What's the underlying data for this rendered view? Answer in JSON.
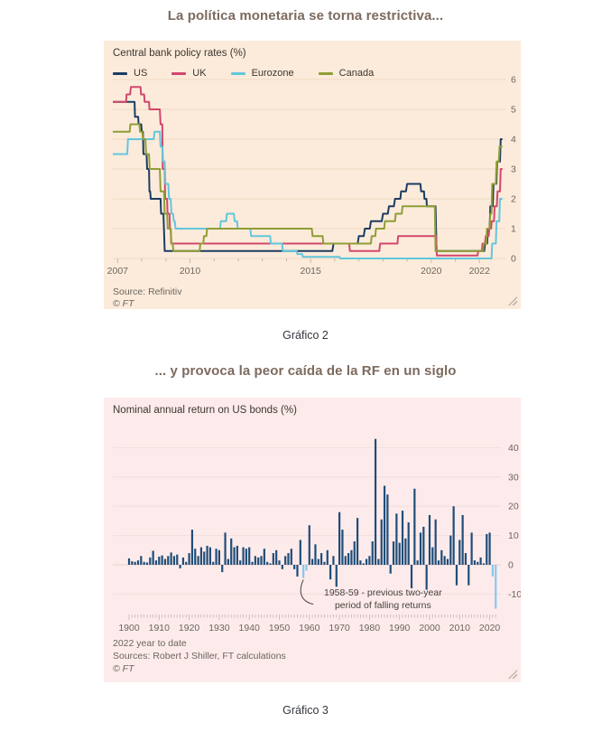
{
  "page": {
    "title1": "La política monetaria se torna restrictiva...",
    "caption1": "Gráfico 2",
    "title2": "... y provoca la peor caída de la RF en un siglo",
    "caption2": "Gráfico 3"
  },
  "colors": {
    "card1_bg": "#fcebdb",
    "card1_grid": "#efd9c2",
    "card1_tick": "#c9b7a4",
    "card2_bg": "#fdebeb",
    "card2_grid": "#f2dcdc",
    "card2_tick": "#c6b0b0",
    "axis_text": "#6b655e",
    "annotation_line": "#46423c"
  },
  "chart_data": [
    {
      "type": "line",
      "title": "Central bank policy rates (%)",
      "source": "Source: Refinitiv",
      "copyright": "© FT",
      "legend_position": "top",
      "grid": true,
      "x_domain": [
        2006.8,
        2023.0
      ],
      "y_domain": [
        0,
        6.3
      ],
      "x_ticks": [
        2007,
        2010,
        2015,
        2020,
        2022
      ],
      "y_ticks": [
        0,
        1,
        2,
        3,
        4,
        5,
        6
      ],
      "series": [
        {
          "name": "US",
          "color": "#1b3c61",
          "points": [
            [
              2006.8,
              5.25
            ],
            [
              2007.7,
              5.25
            ],
            [
              2007.72,
              4.75
            ],
            [
              2007.85,
              4.75
            ],
            [
              2007.87,
              4.5
            ],
            [
              2007.98,
              4.5
            ],
            [
              2008.0,
              4.25
            ],
            [
              2008.05,
              4.25
            ],
            [
              2008.07,
              3.5
            ],
            [
              2008.2,
              3.5
            ],
            [
              2008.22,
              3.0
            ],
            [
              2008.3,
              3.0
            ],
            [
              2008.32,
              2.25
            ],
            [
              2008.35,
              2.25
            ],
            [
              2008.37,
              2.0
            ],
            [
              2008.78,
              2.0
            ],
            [
              2008.8,
              1.5
            ],
            [
              2008.9,
              1.5
            ],
            [
              2008.95,
              0.25
            ],
            [
              2015.9,
              0.25
            ],
            [
              2015.95,
              0.5
            ],
            [
              2016.95,
              0.5
            ],
            [
              2017.0,
              0.75
            ],
            [
              2017.2,
              0.75
            ],
            [
              2017.25,
              1.0
            ],
            [
              2017.45,
              1.0
            ],
            [
              2017.5,
              1.25
            ],
            [
              2017.95,
              1.25
            ],
            [
              2018.0,
              1.5
            ],
            [
              2018.2,
              1.5
            ],
            [
              2018.25,
              1.75
            ],
            [
              2018.45,
              1.75
            ],
            [
              2018.5,
              2.0
            ],
            [
              2018.72,
              2.0
            ],
            [
              2018.75,
              2.25
            ],
            [
              2018.95,
              2.25
            ],
            [
              2019.0,
              2.5
            ],
            [
              2019.55,
              2.5
            ],
            [
              2019.58,
              2.25
            ],
            [
              2019.7,
              2.25
            ],
            [
              2019.72,
              2.0
            ],
            [
              2019.8,
              2.0
            ],
            [
              2019.82,
              1.75
            ],
            [
              2020.18,
              1.75
            ],
            [
              2020.22,
              0.25
            ],
            [
              2022.2,
              0.25
            ],
            [
              2022.23,
              0.5
            ],
            [
              2022.32,
              0.5
            ],
            [
              2022.35,
              1.0
            ],
            [
              2022.42,
              1.0
            ],
            [
              2022.45,
              1.75
            ],
            [
              2022.55,
              1.75
            ],
            [
              2022.58,
              2.5
            ],
            [
              2022.7,
              2.5
            ],
            [
              2022.73,
              3.25
            ],
            [
              2022.85,
              3.25
            ],
            [
              2022.88,
              4.0
            ],
            [
              2022.95,
              4.0
            ]
          ]
        },
        {
          "name": "UK",
          "color": "#d2476d",
          "points": [
            [
              2006.8,
              5.25
            ],
            [
              2007.35,
              5.25
            ],
            [
              2007.37,
              5.5
            ],
            [
              2007.52,
              5.5
            ],
            [
              2007.55,
              5.75
            ],
            [
              2007.95,
              5.75
            ],
            [
              2007.97,
              5.5
            ],
            [
              2008.1,
              5.5
            ],
            [
              2008.12,
              5.25
            ],
            [
              2008.3,
              5.25
            ],
            [
              2008.32,
              5.0
            ],
            [
              2008.75,
              5.0
            ],
            [
              2008.78,
              4.5
            ],
            [
              2008.85,
              4.5
            ],
            [
              2008.87,
              3.0
            ],
            [
              2008.95,
              3.0
            ],
            [
              2008.97,
              2.0
            ],
            [
              2009.05,
              2.0
            ],
            [
              2009.07,
              1.5
            ],
            [
              2009.15,
              1.5
            ],
            [
              2009.17,
              1.0
            ],
            [
              2009.2,
              1.0
            ],
            [
              2009.22,
              0.5
            ],
            [
              2016.6,
              0.5
            ],
            [
              2016.63,
              0.25
            ],
            [
              2017.85,
              0.25
            ],
            [
              2017.88,
              0.5
            ],
            [
              2018.6,
              0.5
            ],
            [
              2018.63,
              0.75
            ],
            [
              2020.2,
              0.75
            ],
            [
              2020.23,
              0.1
            ],
            [
              2021.92,
              0.1
            ],
            [
              2021.95,
              0.25
            ],
            [
              2022.1,
              0.25
            ],
            [
              2022.13,
              0.5
            ],
            [
              2022.23,
              0.5
            ],
            [
              2022.26,
              0.75
            ],
            [
              2022.38,
              0.75
            ],
            [
              2022.41,
              1.0
            ],
            [
              2022.48,
              1.0
            ],
            [
              2022.51,
              1.25
            ],
            [
              2022.6,
              1.25
            ],
            [
              2022.63,
              1.75
            ],
            [
              2022.72,
              1.75
            ],
            [
              2022.75,
              2.25
            ],
            [
              2022.85,
              2.25
            ],
            [
              2022.88,
              3.0
            ],
            [
              2022.95,
              3.0
            ]
          ]
        },
        {
          "name": "Eurozone",
          "color": "#62c6dc",
          "points": [
            [
              2006.8,
              3.5
            ],
            [
              2007.4,
              3.5
            ],
            [
              2007.43,
              4.0
            ],
            [
              2008.5,
              4.0
            ],
            [
              2008.53,
              4.25
            ],
            [
              2008.75,
              4.25
            ],
            [
              2008.78,
              3.75
            ],
            [
              2008.85,
              3.75
            ],
            [
              2008.88,
              3.25
            ],
            [
              2008.95,
              3.25
            ],
            [
              2008.98,
              2.5
            ],
            [
              2009.1,
              2.5
            ],
            [
              2009.13,
              2.0
            ],
            [
              2009.2,
              2.0
            ],
            [
              2009.23,
              1.5
            ],
            [
              2009.3,
              1.5
            ],
            [
              2009.33,
              1.25
            ],
            [
              2009.37,
              1.25
            ],
            [
              2009.4,
              1.0
            ],
            [
              2011.25,
              1.0
            ],
            [
              2011.28,
              1.25
            ],
            [
              2011.5,
              1.25
            ],
            [
              2011.53,
              1.5
            ],
            [
              2011.82,
              1.5
            ],
            [
              2011.85,
              1.25
            ],
            [
              2011.95,
              1.25
            ],
            [
              2011.98,
              1.0
            ],
            [
              2012.5,
              1.0
            ],
            [
              2012.53,
              0.75
            ],
            [
              2013.32,
              0.75
            ],
            [
              2013.35,
              0.5
            ],
            [
              2013.82,
              0.5
            ],
            [
              2013.85,
              0.25
            ],
            [
              2014.42,
              0.25
            ],
            [
              2014.45,
              0.15
            ],
            [
              2014.65,
              0.15
            ],
            [
              2014.68,
              0.05
            ],
            [
              2016.2,
              0.05
            ],
            [
              2016.23,
              0.0
            ],
            [
              2022.5,
              0.0
            ],
            [
              2022.53,
              0.5
            ],
            [
              2022.68,
              0.5
            ],
            [
              2022.71,
              1.25
            ],
            [
              2022.82,
              1.25
            ],
            [
              2022.85,
              2.0
            ],
            [
              2022.95,
              2.0
            ]
          ]
        },
        {
          "name": "Canada",
          "color": "#8f9e35",
          "points": [
            [
              2006.8,
              4.25
            ],
            [
              2007.5,
              4.25
            ],
            [
              2007.53,
              4.5
            ],
            [
              2007.9,
              4.5
            ],
            [
              2007.93,
              4.25
            ],
            [
              2008.02,
              4.25
            ],
            [
              2008.05,
              4.0
            ],
            [
              2008.15,
              4.0
            ],
            [
              2008.18,
              3.5
            ],
            [
              2008.3,
              3.5
            ],
            [
              2008.33,
              3.0
            ],
            [
              2008.75,
              3.0
            ],
            [
              2008.78,
              2.25
            ],
            [
              2008.92,
              2.25
            ],
            [
              2008.95,
              1.5
            ],
            [
              2009.05,
              1.5
            ],
            [
              2009.08,
              1.0
            ],
            [
              2009.2,
              1.0
            ],
            [
              2009.23,
              0.5
            ],
            [
              2009.28,
              0.5
            ],
            [
              2009.31,
              0.25
            ],
            [
              2010.4,
              0.25
            ],
            [
              2010.43,
              0.5
            ],
            [
              2010.55,
              0.5
            ],
            [
              2010.58,
              0.75
            ],
            [
              2010.68,
              0.75
            ],
            [
              2010.71,
              1.0
            ],
            [
              2015.05,
              1.0
            ],
            [
              2015.08,
              0.75
            ],
            [
              2015.5,
              0.75
            ],
            [
              2015.53,
              0.5
            ],
            [
              2017.5,
              0.5
            ],
            [
              2017.53,
              0.75
            ],
            [
              2017.68,
              0.75
            ],
            [
              2017.71,
              1.0
            ],
            [
              2018.05,
              1.0
            ],
            [
              2018.08,
              1.25
            ],
            [
              2018.5,
              1.25
            ],
            [
              2018.53,
              1.5
            ],
            [
              2018.78,
              1.5
            ],
            [
              2018.81,
              1.75
            ],
            [
              2020.15,
              1.75
            ],
            [
              2020.18,
              0.25
            ],
            [
              2022.15,
              0.25
            ],
            [
              2022.18,
              0.5
            ],
            [
              2022.28,
              0.5
            ],
            [
              2022.31,
              1.0
            ],
            [
              2022.42,
              1.0
            ],
            [
              2022.45,
              1.5
            ],
            [
              2022.5,
              1.5
            ],
            [
              2022.53,
              2.5
            ],
            [
              2022.68,
              2.5
            ],
            [
              2022.71,
              3.25
            ],
            [
              2022.8,
              3.25
            ],
            [
              2022.83,
              3.75
            ],
            [
              2022.95,
              3.75
            ]
          ]
        }
      ]
    },
    {
      "type": "bar",
      "title": "Nominal annual return on US bonds (%)",
      "footnote": "2022 year to date",
      "source": "Sources: Robert J Shiller, FT calculations",
      "copyright": "© FT",
      "start_year": 1900,
      "end_year": 2022,
      "x_ticks": [
        1900,
        1910,
        1920,
        1930,
        1940,
        1950,
        1960,
        1970,
        1980,
        1990,
        2000,
        2010,
        2020
      ],
      "y_ticks": [
        -10,
        0,
        10,
        20,
        30,
        40
      ],
      "y_domain": [
        -16,
        45
      ],
      "bar_color": "#1f4d78",
      "highlight_color": "#88c8ea",
      "highlight_years": [
        1958,
        1959,
        2021,
        2022
      ],
      "annotation": {
        "line1": "1958-59 - previous two-year",
        "line2": "period of falling returns",
        "target_year": 1958
      },
      "values": [
        2.2,
        1.2,
        1.0,
        1.5,
        3.0,
        1.0,
        0.8,
        2.5,
        4.8,
        1.5,
        2.8,
        3.2,
        2.0,
        3.0,
        4.2,
        3.0,
        3.5,
        -1.2,
        2.5,
        1.0,
        4.0,
        12.0,
        5.5,
        3.0,
        6.0,
        4.5,
        6.5,
        6.0,
        1.0,
        5.5,
        5.0,
        -2.5,
        11.0,
        2.0,
        9.0,
        6.0,
        6.5,
        1.5,
        6.0,
        5.5,
        6.0,
        1.0,
        3.0,
        2.5,
        3.0,
        5.5,
        1.0,
        0.5,
        4.0,
        5.0,
        1.5,
        -1.5,
        3.0,
        4.0,
        5.5,
        -1.5,
        -4.0,
        8.5,
        -4.5,
        -2.0,
        13.5,
        2.0,
        7.0,
        2.0,
        4.0,
        1.0,
        5.0,
        -5.0,
        3.0,
        -7.5,
        18.0,
        12.0,
        3.0,
        4.0,
        5.0,
        8.0,
        16.0,
        1.5,
        0.5,
        2.0,
        3.0,
        8.0,
        43.0,
        2.0,
        15.5,
        27.0,
        24.0,
        -3.0,
        8.0,
        17.5,
        7.5,
        18.5,
        9.0,
        14.5,
        -8.0,
        26.0,
        1.5,
        11.0,
        13.0,
        -8.5,
        17.0,
        6.0,
        15.5,
        1.5,
        5.0,
        3.0,
        2.0,
        10.0,
        20.0,
        -7.0,
        8.5,
        17.0,
        4.0,
        -7.0,
        11.0,
        1.5,
        1.0,
        2.5,
        0.5,
        10.5,
        11.0,
        -4.0,
        -15.0
      ]
    }
  ]
}
